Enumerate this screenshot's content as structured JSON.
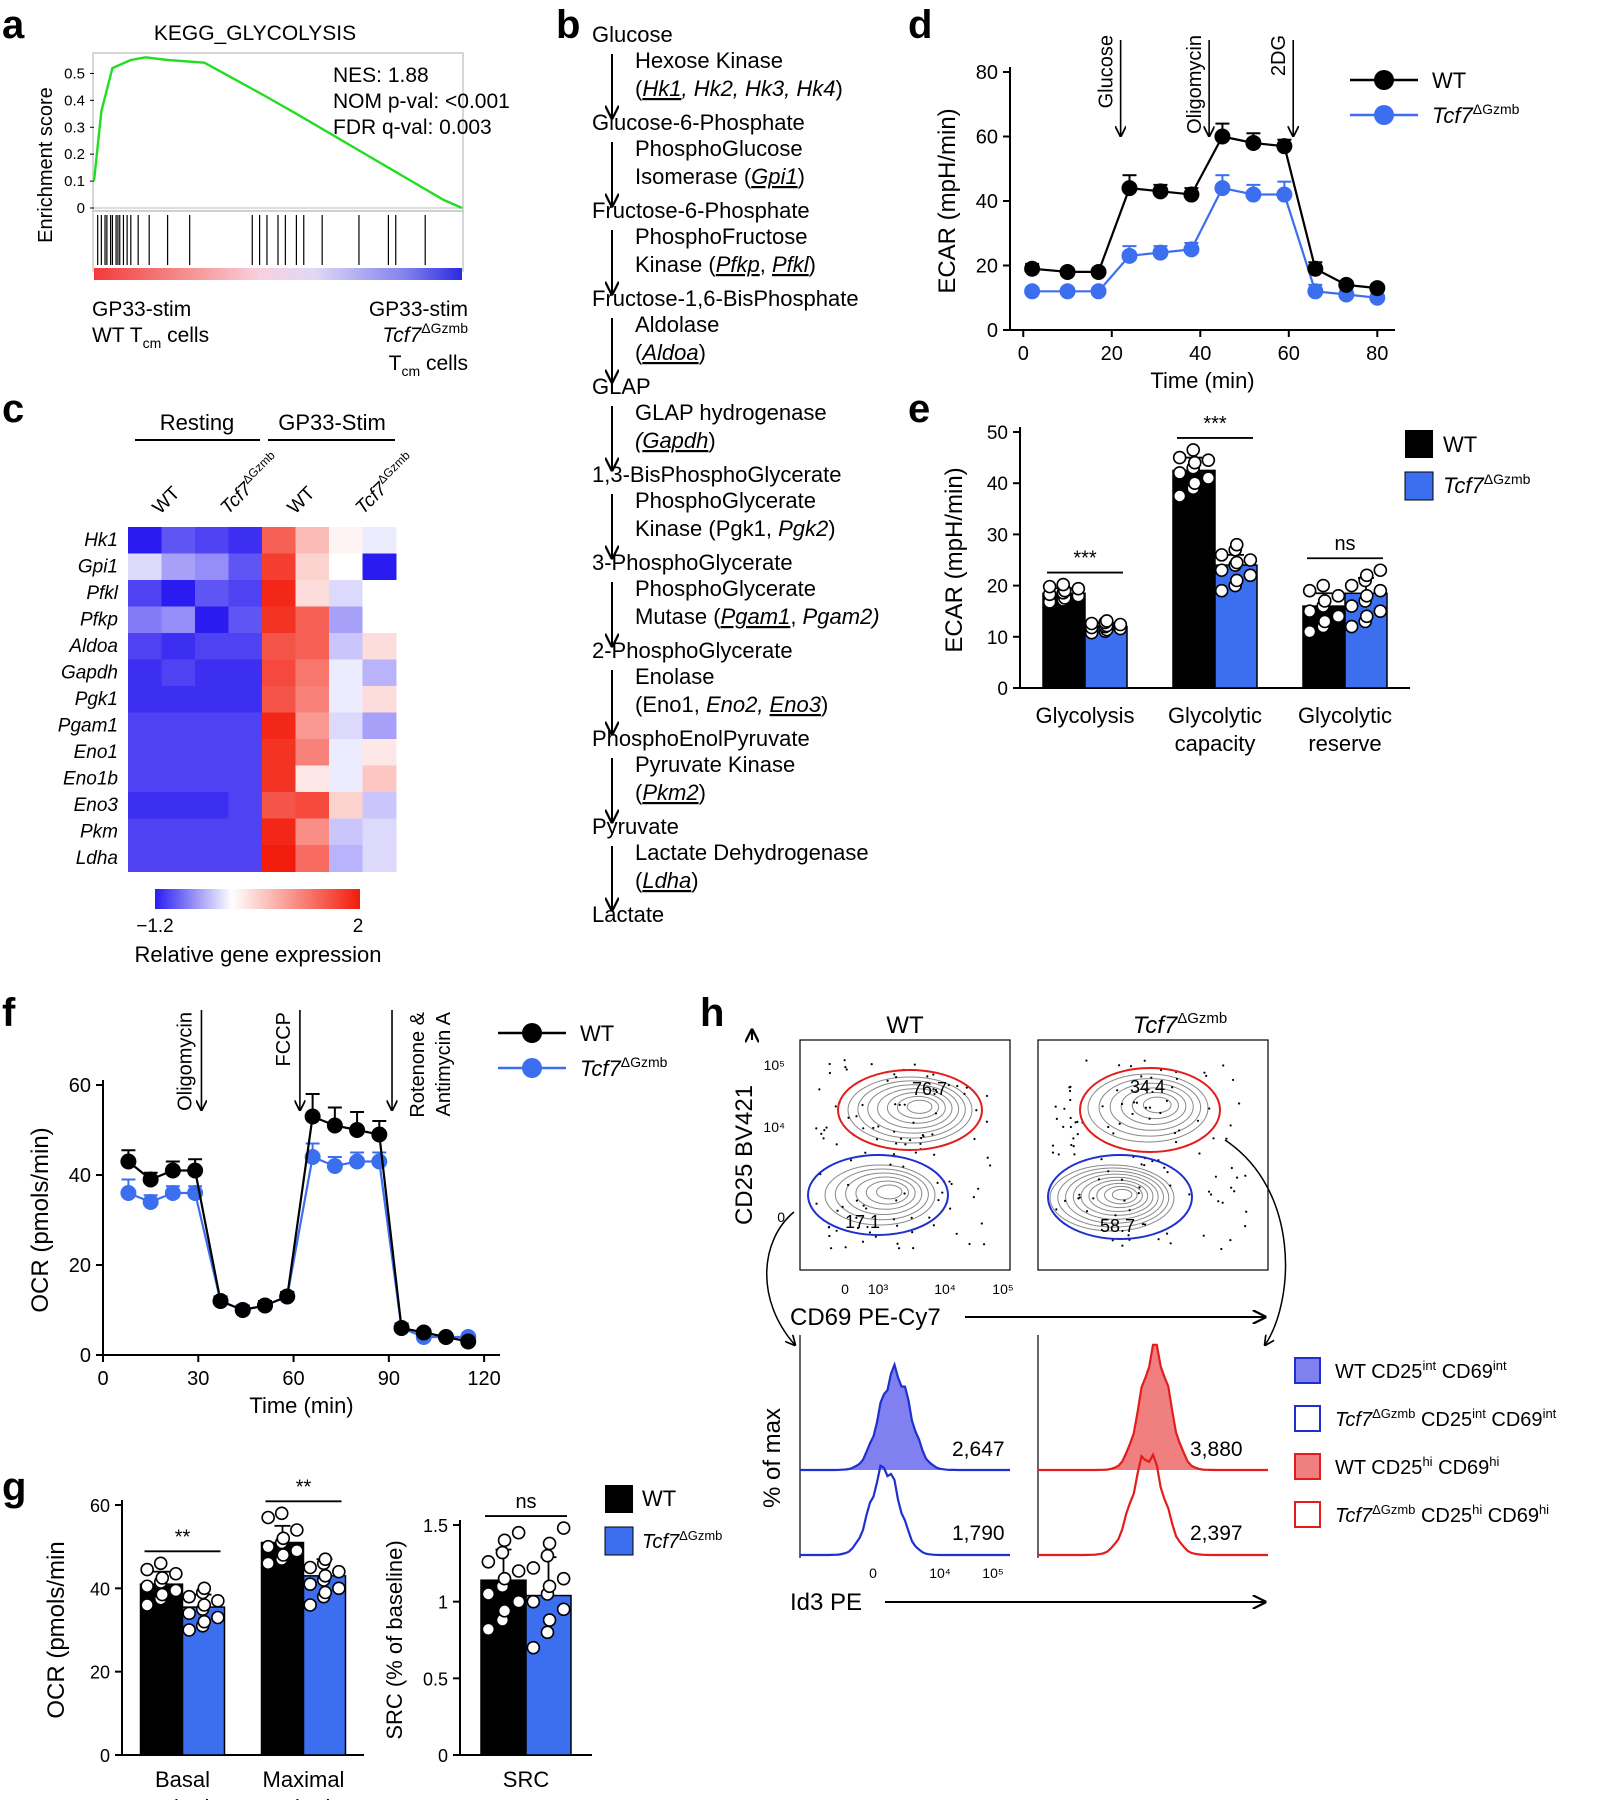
{
  "colors": {
    "wt": "#000000",
    "ko": "#3b6ff0",
    "hm_low": "#2a1cf0",
    "hm_mid": "#ffffff",
    "hm_high": "#f21c0c",
    "hist_wt": "#8080f0",
    "hist_wt_hi": "#f08080",
    "blue_line": "#1f2fd0",
    "red_line": "#e31c1c"
  },
  "panel_labels": {
    "a": "a",
    "b": "b",
    "c": "c",
    "d": "d",
    "e": "e",
    "f": "f",
    "g": "g",
    "h": "h"
  },
  "panel_a": {
    "title": "KEGG_GLYCOLYSIS",
    "nes": "NES: 1.88",
    "nom": "NOM p-val: <0.001",
    "fdr": "FDR q-val: 0.003",
    "ylabel": "Enrichment score",
    "yticks": [
      "0.5",
      "0.4",
      "0.3",
      "0.2",
      "0.1",
      "0"
    ],
    "left_line1": "GP33-stim",
    "left_line2a": "WT T",
    "left_sub": "cm",
    "left_line2b": " cells",
    "right_line1": "GP33-stim",
    "right_line2": "Tcf7",
    "right_sup": "ΔGzmb",
    "right_line3a": "T",
    "right_sub": "cm",
    "right_line3b": " cells"
  },
  "chart_data": [
    {
      "id": "a",
      "type": "line",
      "title": "KEGG_GLYCOLYSIS",
      "ylabel": "Enrichment score",
      "ylim": [
        0,
        0.55
      ],
      "x": [
        0,
        0.02,
        0.05,
        0.1,
        0.14,
        0.2,
        0.3,
        0.38,
        0.46,
        0.55,
        0.65,
        0.75,
        0.85,
        0.95,
        1.0
      ],
      "y": [
        0.1,
        0.36,
        0.52,
        0.55,
        0.56,
        0.55,
        0.54,
        0.48,
        0.42,
        0.35,
        0.27,
        0.19,
        0.11,
        0.03,
        0.0
      ]
    },
    {
      "id": "c",
      "type": "heatmap",
      "columns": [
        "WT",
        "WT",
        "Tcf7ΔGzmb",
        "Tcf7ΔGzmb",
        "WT",
        "WT",
        "Tcf7ΔGzmb",
        "Tcf7ΔGzmb"
      ],
      "groups": [
        "Resting",
        "GP33-Stim"
      ],
      "rows": [
        "Hk1",
        "Gpi1",
        "Pfkl",
        "Pfkp",
        "Aldoa",
        "Gapdh",
        "Pgk1",
        "Pgam1",
        "Eno1",
        "Eno1b",
        "Eno3",
        "Pkm",
        "Ldha"
      ],
      "values": [
        [
          -1.2,
          -0.9,
          -1.0,
          -1.1,
          1.4,
          0.6,
          0.1,
          -0.1
        ],
        [
          -0.2,
          -0.5,
          -0.6,
          -0.9,
          1.7,
          0.4,
          0.0,
          -1.2
        ],
        [
          -1.0,
          -1.2,
          -0.9,
          -1.0,
          1.9,
          0.3,
          -0.2,
          0.0
        ],
        [
          -0.7,
          -0.6,
          -1.2,
          -0.9,
          1.8,
          1.4,
          -0.5,
          0.0
        ],
        [
          -1.0,
          -1.1,
          -1.0,
          -1.0,
          1.5,
          1.4,
          -0.3,
          0.3
        ],
        [
          -1.1,
          -1.0,
          -1.1,
          -1.1,
          1.6,
          1.2,
          -0.1,
          -0.4
        ],
        [
          -1.1,
          -1.1,
          -1.1,
          -1.1,
          1.5,
          1.1,
          -0.1,
          0.3
        ],
        [
          -1.0,
          -1.0,
          -1.0,
          -1.0,
          1.9,
          0.9,
          -0.2,
          -0.5
        ],
        [
          -1.0,
          -1.0,
          -1.0,
          -1.0,
          1.8,
          1.1,
          -0.1,
          0.2
        ],
        [
          -1.0,
          -1.0,
          -1.0,
          -1.0,
          1.8,
          0.2,
          -0.1,
          0.5
        ],
        [
          -1.1,
          -1.1,
          -1.1,
          -1.0,
          1.5,
          1.6,
          0.4,
          -0.3
        ],
        [
          -1.0,
          -1.0,
          -1.0,
          -1.0,
          1.9,
          1.0,
          -0.3,
          -0.2
        ],
        [
          -1.0,
          -1.0,
          -1.0,
          -1.0,
          2.0,
          1.3,
          -0.4,
          -0.2
        ]
      ],
      "scale": [
        -1.2,
        2
      ],
      "scale_label": "Relative gene expression",
      "scale_min_label": "−1.2",
      "scale_max_label": "2"
    },
    {
      "id": "d",
      "type": "line",
      "xlabel": "Time (min)",
      "ylabel": "ECAR (mpH/min)",
      "xlim": [
        -3,
        84
      ],
      "ylim": [
        0,
        80
      ],
      "xticks": [
        0,
        20,
        40,
        60,
        80
      ],
      "yticks": [
        0,
        20,
        40,
        60,
        80
      ],
      "x": [
        2,
        10,
        17,
        24,
        31,
        38,
        45,
        52,
        59,
        66,
        73,
        80
      ],
      "series": [
        {
          "name": "WT",
          "values": [
            19,
            18,
            18,
            44,
            43,
            42,
            60,
            58,
            57,
            19,
            14,
            13
          ],
          "err": [
            1.5,
            1,
            1,
            4,
            2,
            2,
            4,
            3,
            2,
            2,
            1,
            1
          ]
        },
        {
          "name": "Tcf7ΔGzmb",
          "values": [
            12,
            12,
            12,
            23,
            24,
            25,
            44,
            42,
            42,
            12,
            11,
            10
          ],
          "err": [
            1,
            1,
            1,
            3,
            2,
            2,
            4,
            3,
            4,
            2,
            1,
            1
          ]
        }
      ],
      "annotations": [
        "Glucose",
        "Oligomycin",
        "2DG"
      ],
      "annotation_x": [
        22,
        42,
        61
      ]
    },
    {
      "id": "e",
      "type": "bar",
      "ylabel": "ECAR (mpH/min)",
      "ylim": [
        0,
        50
      ],
      "yticks": [
        0,
        10,
        20,
        30,
        40,
        50
      ],
      "categories": [
        [
          "Glycolysis"
        ],
        [
          "Glycolytic",
          "capacity"
        ],
        [
          "Glycolytic",
          "reserve"
        ]
      ],
      "series": [
        {
          "name": "WT",
          "values": [
            18.5,
            42.5,
            16
          ],
          "err": [
            1,
            2.5,
            2.5
          ],
          "points": [
            [
              16.8,
              17.2,
              17.6,
              18,
              18.3,
              18.6,
              19,
              19.4,
              19.8,
              20.2
            ],
            [
              37.5,
              39,
              40,
              41,
              42,
              43,
              44,
              44.5,
              45,
              46.5
            ],
            [
              11,
              12,
              13,
              14,
              15,
              16,
              17,
              18,
              19,
              20
            ]
          ]
        },
        {
          "name": "Tcf7ΔGzmb",
          "values": [
            12,
            24,
            18.5
          ],
          "err": [
            0.7,
            2,
            3
          ],
          "points": [
            [
              10.8,
              11.1,
              11.4,
              11.6,
              11.8,
              12,
              12.2,
              12.4,
              12.6,
              12.8,
              13.1
            ],
            [
              19,
              20,
              21,
              22,
              23,
              24,
              24.5,
              25,
              26,
              27,
              28
            ],
            [
              12,
              13,
              14,
              15,
              16,
              17,
              18,
              19,
              20,
              21,
              22,
              23
            ]
          ]
        }
      ],
      "significance": [
        "***",
        "***",
        "ns"
      ]
    },
    {
      "id": "f",
      "type": "line",
      "xlabel": "Time (min)",
      "ylabel": "OCR (pmols/min)",
      "xlim": [
        0,
        125
      ],
      "ylim": [
        0,
        60
      ],
      "xticks": [
        0,
        30,
        60,
        90,
        120
      ],
      "yticks": [
        0,
        20,
        40,
        60
      ],
      "x": [
        8,
        15,
        22,
        29,
        37,
        44,
        51,
        58,
        66,
        73,
        80,
        87,
        94,
        101,
        108,
        115
      ],
      "series": [
        {
          "name": "WT",
          "values": [
            43,
            39,
            41,
            41,
            12,
            10,
            11,
            13,
            53,
            51,
            50,
            49,
            6,
            5,
            4,
            3
          ],
          "err": [
            2.5,
            1.5,
            2,
            2.5,
            1,
            1,
            1,
            1,
            5,
            4,
            4,
            3,
            1,
            0.7,
            0.6,
            0.6
          ]
        },
        {
          "name": "Tcf7ΔGzmb",
          "values": [
            36,
            34,
            36,
            36,
            12,
            10,
            11,
            13,
            44,
            42,
            43,
            43,
            6,
            4,
            4,
            4
          ],
          "err": [
            3,
            1.5,
            1.5,
            1.5,
            1,
            1,
            1,
            1,
            3,
            2,
            2,
            2,
            1,
            0.6,
            0.5,
            0.5
          ]
        }
      ],
      "annotations": [
        "Oligomycin",
        "FCCP",
        "Rotenone &",
        "Antimycin A"
      ],
      "annotation_x": [
        31,
        62,
        91
      ]
    },
    {
      "id": "g1",
      "type": "bar",
      "ylabel": "OCR (pmols/min",
      "ylim": [
        0,
        60
      ],
      "yticks": [
        0,
        20,
        40,
        60
      ],
      "categories": [
        [
          "Basal",
          "respiration"
        ],
        [
          "Maximal",
          "respiration"
        ]
      ],
      "series": [
        {
          "name": "WT",
          "values": [
            41,
            51
          ],
          "err": [
            3,
            4
          ],
          "points": [
            [
              36,
              37.5,
              38.5,
              39.5,
              40.5,
              41.5,
              42.5,
              43.5,
              44.5,
              46
            ],
            [
              46,
              47,
              48,
              49,
              50,
              51,
              52,
              54,
              57,
              58
            ]
          ]
        },
        {
          "name": "Tcf7ΔGzmb",
          "values": [
            35.5,
            43
          ],
          "err": [
            3,
            4
          ],
          "points": [
            [
              30,
              31,
              32,
              33,
              34,
              35,
              36,
              37,
              38,
              39,
              40
            ],
            [
              36,
              38,
              39,
              40,
              41,
              42,
              43,
              44,
              45,
              46,
              47
            ]
          ]
        }
      ],
      "significance": [
        "**",
        "**"
      ]
    },
    {
      "id": "g2",
      "type": "bar",
      "ylabel": "SRC (% of baseline)",
      "ylim": [
        0,
        1.5
      ],
      "yticks": [
        0,
        0.5,
        1.0,
        1.5
      ],
      "categories": [
        [
          "SRC"
        ]
      ],
      "series": [
        {
          "name": "WT",
          "values": [
            1.14
          ],
          "err": [
            0.2
          ],
          "points": [
            [
              0.82,
              0.88,
              0.94,
              1.0,
              1.05,
              1.1,
              1.15,
              1.2,
              1.26,
              1.32,
              1.4,
              1.45
            ]
          ]
        },
        {
          "name": "Tcf7ΔGzmb",
          "values": [
            1.04
          ],
          "err": [
            0.25
          ],
          "points": [
            [
              0.7,
              0.8,
              0.88,
              0.95,
              1.0,
              1.05,
              1.1,
              1.15,
              1.22,
              1.3,
              1.38,
              1.48
            ]
          ]
        }
      ],
      "significance": [
        "ns"
      ]
    }
  ],
  "panel_b": {
    "steps": [
      {
        "m": "Glucose",
        "e": [
          [
            [
              "Hexose Kinase",
              "n"
            ]
          ],
          [
            [
              "(",
              "n"
            ],
            [
              "Hk1",
              "iu"
            ],
            [
              ", ",
              "i"
            ],
            [
              "Hk2, Hk3, Hk4",
              "i"
            ],
            [
              ")",
              "n"
            ]
          ]
        ]
      },
      {
        "m": "Glucose-6-Phosphate",
        "e": [
          [
            [
              "PhosphoGlucose",
              "n"
            ]
          ],
          [
            [
              "Isomerase (",
              "n"
            ],
            [
              "Gpi1",
              "iu"
            ],
            [
              ")",
              "n"
            ]
          ]
        ]
      },
      {
        "m": "Fructose-6-Phosphate",
        "e": [
          [
            [
              "PhosphoFructose",
              "n"
            ]
          ],
          [
            [
              "Kinase (",
              "n"
            ],
            [
              "Pfkp",
              "iu"
            ],
            [
              ", ",
              "n"
            ],
            [
              "Pfkl",
              "iu"
            ],
            [
              ")",
              "n"
            ]
          ]
        ]
      },
      {
        "m": "Fructose-1,6-BisPhosphate",
        "e": [
          [
            [
              "Aldolase",
              "n"
            ]
          ],
          [
            [
              "(",
              "n"
            ],
            [
              "Aldoa",
              "iu"
            ],
            [
              ")",
              "n"
            ]
          ]
        ]
      },
      {
        "m": "GLAP",
        "e": [
          [
            [
              "GLAP hydrogenase",
              "n"
            ]
          ],
          [
            [
              "(",
              "i"
            ],
            [
              "Gapdh",
              "iu"
            ],
            [
              ")",
              "n"
            ]
          ]
        ]
      },
      {
        "m": "1,3-BisPhosphoGlycerate",
        "e": [
          [
            [
              "PhosphoGlycerate",
              "n"
            ]
          ],
          [
            [
              "Kinase (Pgk1, ",
              "n"
            ],
            [
              "Pgk2",
              "i"
            ],
            [
              ")",
              "n"
            ]
          ]
        ]
      },
      {
        "m": "3-PhosphoGlycerate",
        "e": [
          [
            [
              "PhosphoGlycerate",
              "n"
            ]
          ],
          [
            [
              "Mutase (",
              "n"
            ],
            [
              "Pgam1",
              "iu"
            ],
            [
              ", ",
              "n"
            ],
            [
              "Pgam2)",
              "i"
            ]
          ]
        ]
      },
      {
        "m": "2-PhosphoGlycerate",
        "e": [
          [
            [
              "Enolase",
              "n"
            ]
          ],
          [
            [
              "(Eno1, ",
              "n"
            ],
            [
              "Eno2, ",
              "i"
            ],
            [
              "Eno3",
              "iu"
            ],
            [
              ")",
              "n"
            ]
          ]
        ]
      },
      {
        "m": "PhosphoEnolPyruvate",
        "e": [
          [
            [
              "Pyruvate Kinase",
              "n"
            ]
          ],
          [
            [
              "(",
              "n"
            ],
            [
              "Pkm2",
              "iu"
            ],
            [
              ")",
              "n"
            ]
          ]
        ]
      },
      {
        "m": "Pyruvate",
        "e": [
          [
            [
              "Lactate Dehydrogenase",
              "n"
            ]
          ],
          [
            [
              "(",
              "n"
            ],
            [
              "Ldha",
              "iu"
            ],
            [
              ")",
              "n"
            ]
          ]
        ]
      },
      {
        "m": "Lactate",
        "e": []
      }
    ]
  },
  "legends": {
    "wt": "WT",
    "ko": "Tcf7",
    "ko_sup": "ΔGzmb"
  },
  "panel_h": {
    "wt_title": "WT",
    "ko_title": "Tcf7",
    "ko_sup": "ΔGzmb",
    "yaxis": "CD25 BV421",
    "xaxis": "CD69 PE-Cy7",
    "yticks": [
      "10⁵",
      "10⁴",
      "0"
    ],
    "xticks": [
      "0",
      "10³",
      "10⁴",
      "10⁵"
    ],
    "wt_hi": "76.7",
    "wt_int": "17.1",
    "ko_hi": "34.4",
    "ko_int": "58.7",
    "hist_y": "% of max",
    "hist_x": "Id3 PE",
    "hist_xticks": [
      "0",
      "10⁴",
      "10⁵"
    ],
    "mfi_wt_int": "2,647",
    "mfi_ko_int": "1,790",
    "mfi_wt_hi": "3,880",
    "mfi_ko_hi": "2,397",
    "legend": [
      {
        "pre": "WT",
        "mid": " CD25",
        "sup1": "int",
        "mid2": " CD69",
        "sup2": "int",
        "fill": true,
        "color": "#8080f0",
        "stroke": "#1f2fd0"
      },
      {
        "pre": "Tcf7",
        "presup": "ΔGzmb",
        "mid": " CD25",
        "sup1": "int",
        "mid2": " CD69",
        "sup2": "int",
        "fill": false,
        "color": "#ffffff",
        "stroke": "#1f2fd0"
      },
      {
        "pre": "WT",
        "mid": " CD25",
        "sup1": "hi",
        "mid2": " CD69",
        "sup2": "hi",
        "fill": true,
        "color": "#f08080",
        "stroke": "#e31c1c"
      },
      {
        "pre": "Tcf7",
        "presup": "ΔGzmb",
        "mid": " CD25",
        "sup1": "hi",
        "mid2": " CD69",
        "sup2": "hi",
        "fill": false,
        "color": "#ffffff",
        "stroke": "#e31c1c"
      }
    ]
  }
}
